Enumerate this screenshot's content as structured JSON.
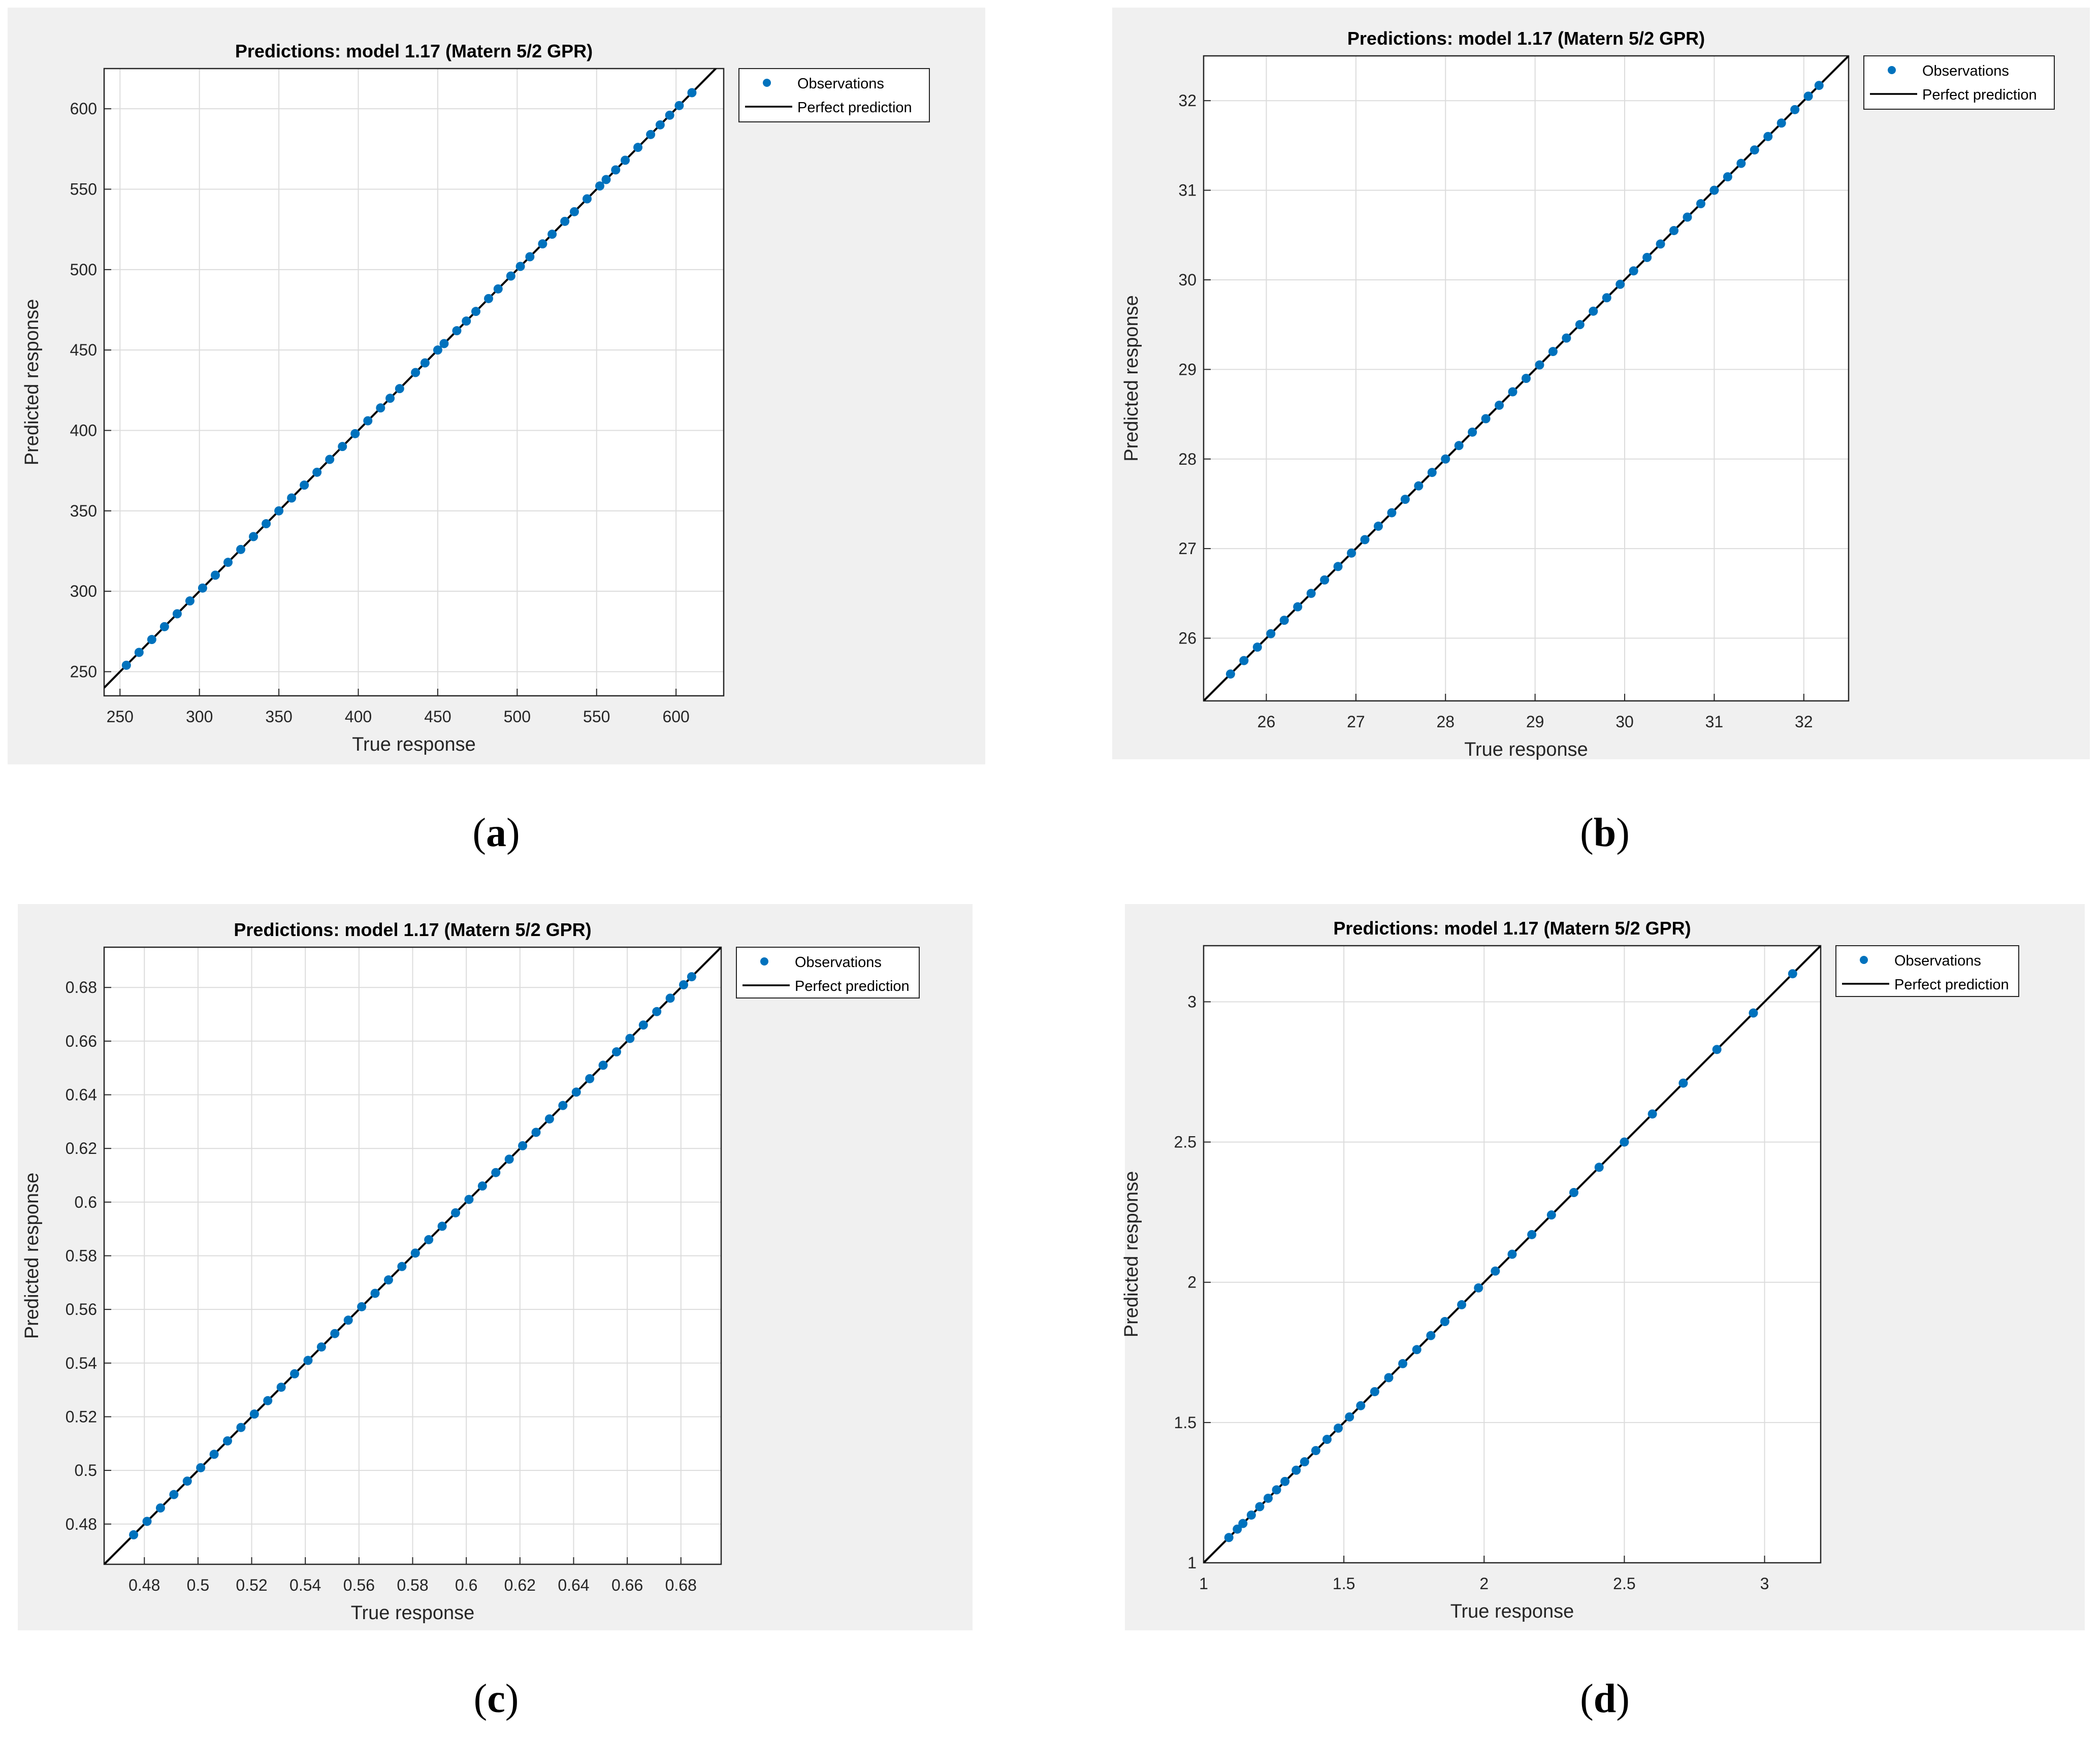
{
  "captions": [
    "a",
    "b",
    "c",
    "d"
  ],
  "colors": {
    "observations": "#0072bd",
    "perfect_line": "#000000",
    "grid": "#dcdcdc",
    "axes_bg": "#ffffff",
    "figure_bg": "#f0f0f0"
  },
  "legend": {
    "observations": "Observations",
    "perfect": "Perfect prediction"
  },
  "chart_data": [
    {
      "type": "scatter",
      "title": "Predictions: model 1.17 (Matern 5/2 GPR)",
      "xlabel": "True response",
      "ylabel": "Predicted response",
      "xlim": [
        240,
        630
      ],
      "ylim": [
        235,
        625
      ],
      "xticks": [
        250,
        300,
        350,
        400,
        450,
        500,
        550,
        600
      ],
      "yticks": [
        250,
        300,
        350,
        400,
        450,
        500,
        550,
        600
      ],
      "xtick_labels": [
        "250",
        "300",
        "350",
        "400",
        "450",
        "500",
        "550",
        "600"
      ],
      "ytick_labels": [
        "250",
        "300",
        "350",
        "400",
        "450",
        "500",
        "550",
        "600"
      ],
      "grid": true,
      "legend_position": "outside-right-top",
      "series": [
        {
          "name": "Observations",
          "points": [
            [
              254,
              254
            ],
            [
              262,
              262
            ],
            [
              270,
              270
            ],
            [
              278,
              278
            ],
            [
              286,
              286
            ],
            [
              294,
              294
            ],
            [
              302,
              302
            ],
            [
              310,
              310
            ],
            [
              318,
              318
            ],
            [
              326,
              326
            ],
            [
              334,
              334
            ],
            [
              342,
              342
            ],
            [
              350,
              350
            ],
            [
              358,
              358
            ],
            [
              366,
              366
            ],
            [
              374,
              374
            ],
            [
              382,
              382
            ],
            [
              390,
              390
            ],
            [
              398,
              398
            ],
            [
              406,
              406
            ],
            [
              414,
              414
            ],
            [
              420,
              420
            ],
            [
              426,
              426
            ],
            [
              436,
              436
            ],
            [
              442,
              442
            ],
            [
              450,
              450
            ],
            [
              454,
              454
            ],
            [
              462,
              462
            ],
            [
              468,
              468
            ],
            [
              474,
              474
            ],
            [
              482,
              482
            ],
            [
              488,
              488
            ],
            [
              496,
              496
            ],
            [
              502,
              502
            ],
            [
              508,
              508
            ],
            [
              516,
              516
            ],
            [
              522,
              522
            ],
            [
              530,
              530
            ],
            [
              536,
              536
            ],
            [
              544,
              544
            ],
            [
              552,
              552
            ],
            [
              556,
              556
            ],
            [
              562,
              562
            ],
            [
              568,
              568
            ],
            [
              576,
              576
            ],
            [
              584,
              584
            ],
            [
              590,
              590
            ],
            [
              596,
              596
            ],
            [
              602,
              602
            ],
            [
              610,
              610
            ]
          ]
        },
        {
          "name": "Perfect prediction",
          "line": [
            [
              240,
              240
            ],
            [
              630,
              630
            ]
          ]
        }
      ]
    },
    {
      "type": "scatter",
      "title": "Predictions: model 1.17 (Matern 5/2 GPR)",
      "xlabel": "True response",
      "ylabel": "Predicted response",
      "xlim": [
        25.3,
        32.5
      ],
      "ylim": [
        25.3,
        32.5
      ],
      "xticks": [
        26,
        27,
        28,
        29,
        30,
        31,
        32
      ],
      "yticks": [
        26,
        27,
        28,
        29,
        30,
        31,
        32
      ],
      "xtick_labels": [
        "26",
        "27",
        "28",
        "29",
        "30",
        "31",
        "32"
      ],
      "ytick_labels": [
        "26",
        "27",
        "28",
        "29",
        "30",
        "31",
        "32"
      ],
      "grid": true,
      "legend_position": "outside-right-top",
      "series": [
        {
          "name": "Observations",
          "points": [
            [
              25.6,
              25.6
            ],
            [
              25.75,
              25.75
            ],
            [
              25.9,
              25.9
            ],
            [
              26.05,
              26.05
            ],
            [
              26.2,
              26.2
            ],
            [
              26.35,
              26.35
            ],
            [
              26.5,
              26.5
            ],
            [
              26.65,
              26.65
            ],
            [
              26.8,
              26.8
            ],
            [
              26.95,
              26.95
            ],
            [
              27.1,
              27.1
            ],
            [
              27.25,
              27.25
            ],
            [
              27.4,
              27.4
            ],
            [
              27.55,
              27.55
            ],
            [
              27.7,
              27.7
            ],
            [
              27.85,
              27.85
            ],
            [
              28.0,
              28.0
            ],
            [
              28.15,
              28.15
            ],
            [
              28.3,
              28.3
            ],
            [
              28.45,
              28.45
            ],
            [
              28.6,
              28.6
            ],
            [
              28.75,
              28.75
            ],
            [
              28.9,
              28.9
            ],
            [
              29.05,
              29.05
            ],
            [
              29.2,
              29.2
            ],
            [
              29.35,
              29.35
            ],
            [
              29.5,
              29.5
            ],
            [
              29.65,
              29.65
            ],
            [
              29.8,
              29.8
            ],
            [
              29.95,
              29.95
            ],
            [
              30.1,
              30.1
            ],
            [
              30.25,
              30.25
            ],
            [
              30.4,
              30.4
            ],
            [
              30.55,
              30.55
            ],
            [
              30.7,
              30.7
            ],
            [
              30.85,
              30.85
            ],
            [
              31.0,
              31.0
            ],
            [
              31.15,
              31.15
            ],
            [
              31.3,
              31.3
            ],
            [
              31.45,
              31.45
            ],
            [
              31.6,
              31.6
            ],
            [
              31.75,
              31.75
            ],
            [
              31.9,
              31.9
            ],
            [
              32.05,
              32.05
            ],
            [
              32.17,
              32.17
            ]
          ]
        },
        {
          "name": "Perfect prediction",
          "line": [
            [
              25.3,
              25.3
            ],
            [
              32.5,
              32.5
            ]
          ]
        }
      ]
    },
    {
      "type": "scatter",
      "title": "Predictions: model 1.17 (Matern 5/2 GPR)",
      "xlabel": "True response",
      "ylabel": "Predicted response",
      "xlim": [
        0.465,
        0.695
      ],
      "ylim": [
        0.465,
        0.695
      ],
      "xticks": [
        0.48,
        0.5,
        0.52,
        0.54,
        0.56,
        0.58,
        0.6,
        0.62,
        0.64,
        0.66,
        0.68
      ],
      "yticks": [
        0.48,
        0.5,
        0.52,
        0.54,
        0.56,
        0.58,
        0.6,
        0.62,
        0.64,
        0.66,
        0.68
      ],
      "xtick_labels": [
        "0.48",
        "0.5",
        "0.52",
        "0.54",
        "0.56",
        "0.58",
        "0.6",
        "0.62",
        "0.64",
        "0.66",
        "0.68"
      ],
      "ytick_labels": [
        "0.48",
        "0.5",
        "0.52",
        "0.54",
        "0.56",
        "0.58",
        "0.6",
        "0.62",
        "0.64",
        "0.66",
        "0.68"
      ],
      "grid": true,
      "legend_position": "outside-right-top",
      "series": [
        {
          "name": "Observations",
          "points": [
            [
              0.476,
              0.476
            ],
            [
              0.481,
              0.481
            ],
            [
              0.486,
              0.486
            ],
            [
              0.491,
              0.491
            ],
            [
              0.496,
              0.496
            ],
            [
              0.501,
              0.501
            ],
            [
              0.506,
              0.506
            ],
            [
              0.511,
              0.511
            ],
            [
              0.516,
              0.516
            ],
            [
              0.521,
              0.521
            ],
            [
              0.526,
              0.526
            ],
            [
              0.531,
              0.531
            ],
            [
              0.536,
              0.536
            ],
            [
              0.541,
              0.541
            ],
            [
              0.546,
              0.546
            ],
            [
              0.551,
              0.551
            ],
            [
              0.556,
              0.556
            ],
            [
              0.561,
              0.561
            ],
            [
              0.566,
              0.566
            ],
            [
              0.571,
              0.571
            ],
            [
              0.576,
              0.576
            ],
            [
              0.581,
              0.581
            ],
            [
              0.586,
              0.586
            ],
            [
              0.591,
              0.591
            ],
            [
              0.596,
              0.596
            ],
            [
              0.601,
              0.601
            ],
            [
              0.606,
              0.606
            ],
            [
              0.611,
              0.611
            ],
            [
              0.616,
              0.616
            ],
            [
              0.621,
              0.621
            ],
            [
              0.626,
              0.626
            ],
            [
              0.631,
              0.631
            ],
            [
              0.636,
              0.636
            ],
            [
              0.641,
              0.641
            ],
            [
              0.646,
              0.646
            ],
            [
              0.651,
              0.651
            ],
            [
              0.656,
              0.656
            ],
            [
              0.661,
              0.661
            ],
            [
              0.666,
              0.666
            ],
            [
              0.671,
              0.671
            ],
            [
              0.676,
              0.676
            ],
            [
              0.681,
              0.681
            ],
            [
              0.684,
              0.684
            ]
          ]
        },
        {
          "name": "Perfect prediction",
          "line": [
            [
              0.465,
              0.465
            ],
            [
              0.695,
              0.695
            ]
          ]
        }
      ]
    },
    {
      "type": "scatter",
      "title": "Predictions: model 1.17 (Matern 5/2 GPR)",
      "xlabel": "True response",
      "ylabel": "Predicted response",
      "xlim": [
        1,
        3.2
      ],
      "ylim": [
        1,
        3.2
      ],
      "xticks": [
        1,
        1.5,
        2,
        2.5,
        3
      ],
      "yticks": [
        1,
        1.5,
        2,
        2.5,
        3
      ],
      "xtick_labels": [
        "1",
        "1.5",
        "2",
        "2.5",
        "3"
      ],
      "ytick_labels": [
        "1",
        "1.5",
        "2",
        "2.5",
        "3"
      ],
      "grid": true,
      "legend_position": "outside-right-top",
      "series": [
        {
          "name": "Observations",
          "points": [
            [
              1.09,
              1.09
            ],
            [
              1.12,
              1.12
            ],
            [
              1.14,
              1.14
            ],
            [
              1.17,
              1.17
            ],
            [
              1.2,
              1.2
            ],
            [
              1.23,
              1.23
            ],
            [
              1.26,
              1.26
            ],
            [
              1.29,
              1.29
            ],
            [
              1.33,
              1.33
            ],
            [
              1.36,
              1.36
            ],
            [
              1.4,
              1.4
            ],
            [
              1.44,
              1.44
            ],
            [
              1.48,
              1.48
            ],
            [
              1.52,
              1.52
            ],
            [
              1.56,
              1.56
            ],
            [
              1.61,
              1.61
            ],
            [
              1.66,
              1.66
            ],
            [
              1.71,
              1.71
            ],
            [
              1.76,
              1.76
            ],
            [
              1.81,
              1.81
            ],
            [
              1.86,
              1.86
            ],
            [
              1.92,
              1.92
            ],
            [
              1.98,
              1.98
            ],
            [
              2.04,
              2.04
            ],
            [
              2.1,
              2.1
            ],
            [
              2.17,
              2.17
            ],
            [
              2.24,
              2.24
            ],
            [
              2.32,
              2.32
            ],
            [
              2.41,
              2.41
            ],
            [
              2.5,
              2.5
            ],
            [
              2.6,
              2.6
            ],
            [
              2.71,
              2.71
            ],
            [
              2.83,
              2.83
            ],
            [
              2.96,
              2.96
            ],
            [
              3.1,
              3.1
            ]
          ]
        },
        {
          "name": "Perfect prediction",
          "line": [
            [
              1,
              1
            ],
            [
              3.2,
              3.2
            ]
          ]
        }
      ]
    }
  ]
}
